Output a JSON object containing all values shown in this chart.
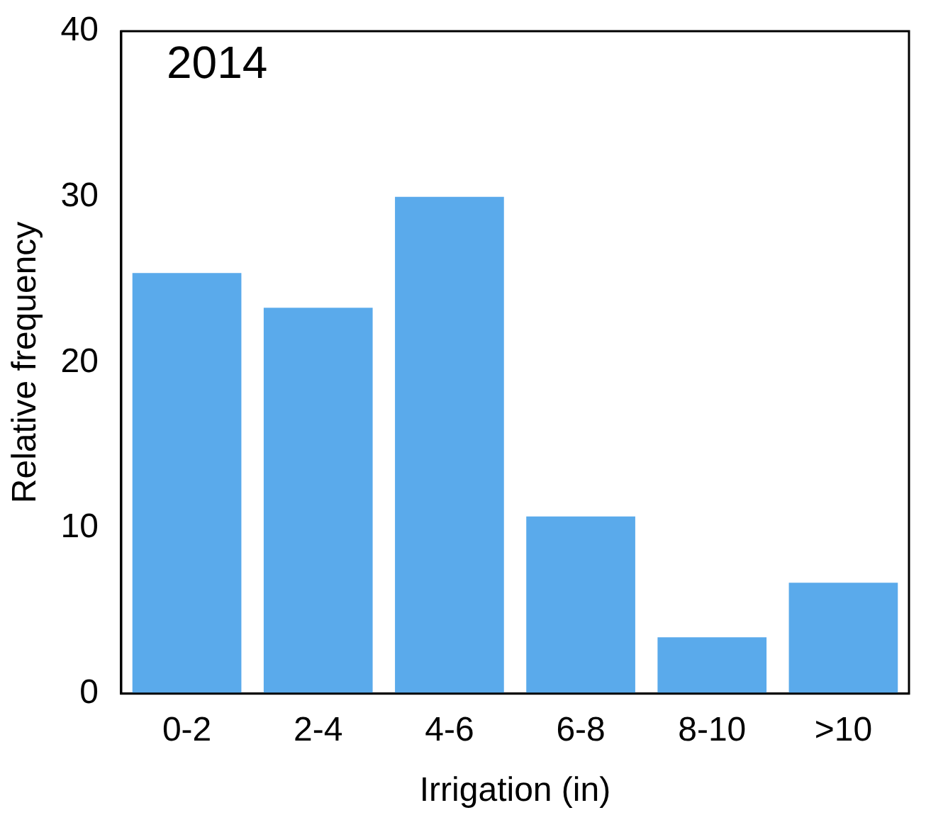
{
  "chart_data": {
    "type": "bar",
    "xlabel": "Irrigation (in)",
    "ylabel": "Relative frequency",
    "annotations": [
      "2014"
    ],
    "categories": [
      "0-2",
      "2-4",
      "4-6",
      "6-8",
      "8-10",
      ">10"
    ],
    "values": [
      25.4,
      23.3,
      30,
      10.7,
      3.4,
      6.7
    ],
    "color": "#5aaaeb",
    "ylim": [
      0,
      40
    ],
    "yticks": [
      0,
      10,
      20,
      30,
      40
    ],
    "grid": false,
    "legend": false
  }
}
